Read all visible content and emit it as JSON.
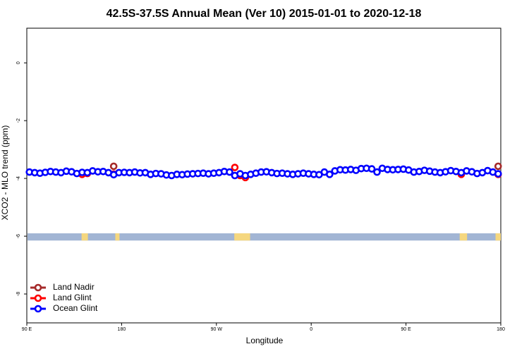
{
  "chart_data": {
    "type": "scatter",
    "title": "42.5S-37.5S Annual Mean (Ver 10)   2015-01-01 to 2020-12-18",
    "x_label": "Longitude",
    "y_label": "XCO2 - MLO trend (ppm)",
    "xlim": [
      90,
      540
    ],
    "ylim": [
      -9,
      1.2
    ],
    "xticks": [
      {
        "value": 90,
        "label": "90 E"
      },
      {
        "value": 180,
        "label": "180"
      },
      {
        "value": 270,
        "label": "90 W"
      },
      {
        "value": 360,
        "label": "0"
      },
      {
        "value": 450,
        "label": "90 E"
      },
      {
        "value": 540,
        "label": "180"
      }
    ],
    "yticks": [
      0,
      -2,
      -4,
      -6,
      -8
    ],
    "legend_position": "bottom-left",
    "mask_band": [
      -6.15,
      -5.9
    ],
    "mask_colors": {
      "ocean": "#a2b5d4",
      "land": "#f5d77f"
    },
    "land_mask": [
      [
        142,
        148
      ],
      [
        174,
        178
      ],
      [
        287,
        302
      ],
      [
        501,
        508
      ],
      [
        535,
        540
      ]
    ],
    "series": [
      {
        "name": "Land Nadir",
        "color": "#a52a2a",
        "x": [
          172.5,
          537.5
        ],
        "values": [
          -3.58,
          -3.58
        ]
      },
      {
        "name": "Land Glint",
        "color": "#ff0000",
        "x": [
          142.5,
          147.5,
          172.5,
          287.5,
          292.5,
          297.5,
          502.5,
          537.5
        ],
        "values": [
          -3.86,
          -3.83,
          -3.85,
          -3.62,
          -3.9,
          -3.97,
          -3.86,
          -3.86
        ]
      },
      {
        "name": "Ocean Glint",
        "color": "#0000ff",
        "x": [
          92.5,
          97.5,
          102.5,
          107.5,
          112.5,
          117.5,
          122.5,
          127.5,
          132.5,
          137.5,
          142.5,
          147.5,
          152.5,
          157.5,
          162.5,
          167.5,
          172.5,
          177.5,
          182.5,
          187.5,
          192.5,
          197.5,
          202.5,
          207.5,
          212.5,
          217.5,
          222.5,
          227.5,
          232.5,
          237.5,
          242.5,
          247.5,
          252.5,
          257.5,
          262.5,
          267.5,
          272.5,
          277.5,
          282.5,
          287.5,
          292.5,
          297.5,
          302.5,
          307.5,
          312.5,
          317.5,
          322.5,
          327.5,
          332.5,
          337.5,
          342.5,
          347.5,
          352.5,
          357.5,
          362.5,
          367.5,
          372.5,
          377.5,
          382.5,
          387.5,
          392.5,
          397.5,
          402.5,
          407.5,
          412.5,
          417.5,
          422.5,
          427.5,
          432.5,
          437.5,
          442.5,
          447.5,
          452.5,
          457.5,
          462.5,
          467.5,
          472.5,
          477.5,
          482.5,
          487.5,
          492.5,
          497.5,
          502.5,
          507.5,
          512.5,
          517.5,
          522.5,
          527.5,
          532.5,
          537.5
        ],
        "values": [
          -3.78,
          -3.8,
          -3.82,
          -3.79,
          -3.76,
          -3.78,
          -3.8,
          -3.75,
          -3.77,
          -3.83,
          -3.79,
          -3.8,
          -3.74,
          -3.77,
          -3.76,
          -3.8,
          -3.87,
          -3.8,
          -3.79,
          -3.8,
          -3.78,
          -3.81,
          -3.8,
          -3.86,
          -3.83,
          -3.84,
          -3.88,
          -3.9,
          -3.86,
          -3.87,
          -3.85,
          -3.84,
          -3.83,
          -3.82,
          -3.84,
          -3.82,
          -3.8,
          -3.76,
          -3.78,
          -3.9,
          -3.84,
          -3.9,
          -3.86,
          -3.82,
          -3.78,
          -3.77,
          -3.8,
          -3.83,
          -3.82,
          -3.84,
          -3.86,
          -3.84,
          -3.82,
          -3.84,
          -3.86,
          -3.87,
          -3.78,
          -3.86,
          -3.74,
          -3.7,
          -3.71,
          -3.69,
          -3.72,
          -3.66,
          -3.65,
          -3.67,
          -3.78,
          -3.65,
          -3.69,
          -3.7,
          -3.69,
          -3.68,
          -3.71,
          -3.78,
          -3.76,
          -3.72,
          -3.75,
          -3.78,
          -3.8,
          -3.77,
          -3.73,
          -3.76,
          -3.8,
          -3.74,
          -3.77,
          -3.83,
          -3.8,
          -3.73,
          -3.78,
          -3.84
        ]
      }
    ]
  }
}
